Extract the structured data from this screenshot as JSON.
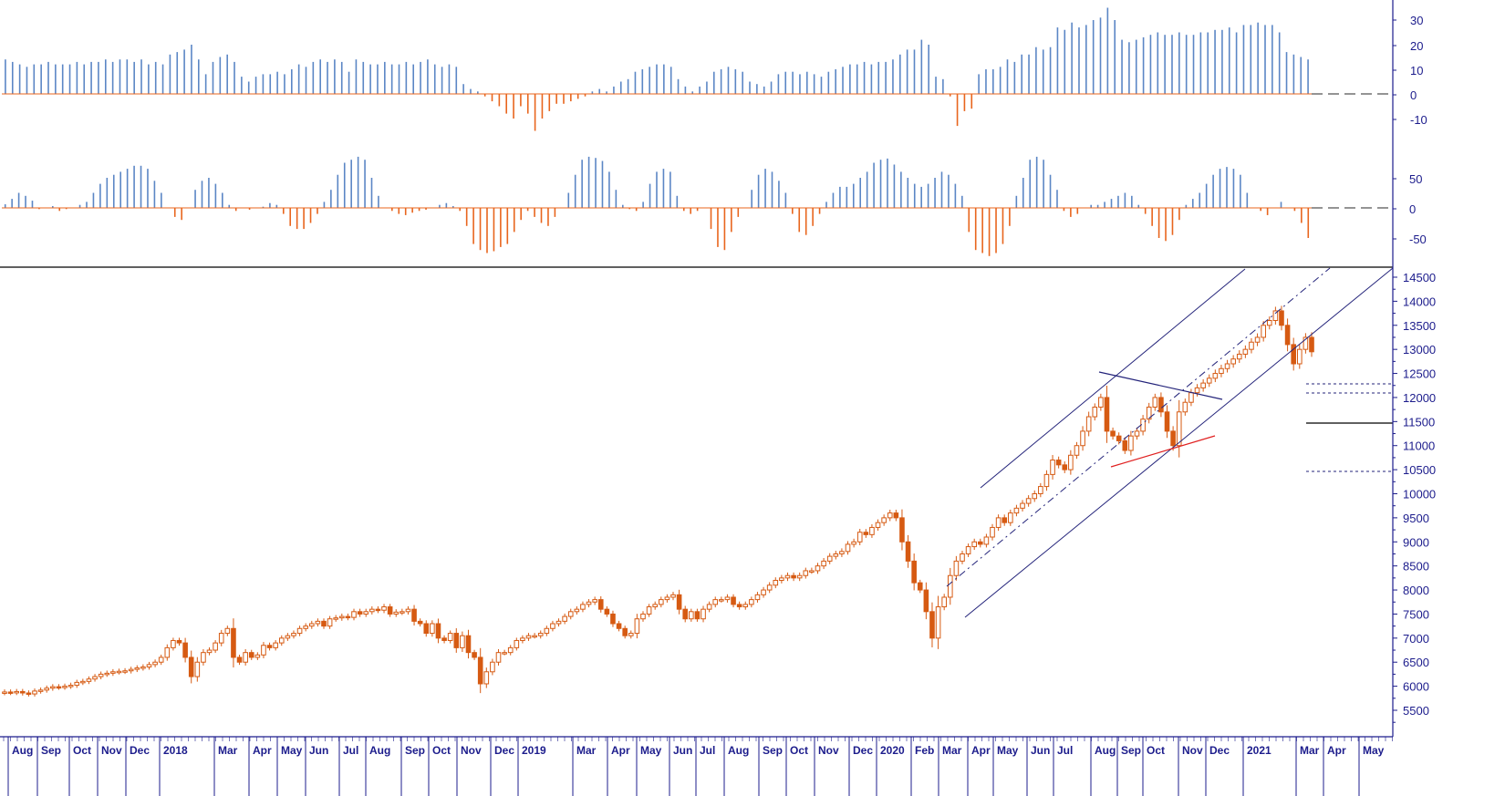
{
  "chart_data": [
    {
      "type": "bar",
      "panel": "oscillator-upper",
      "y_ticks": [
        "30",
        "20",
        "10",
        "0",
        "-10"
      ],
      "ylim": [
        -14,
        36
      ],
      "zero_line": "dashed",
      "colors": {
        "positive": "#5b86c5",
        "negative": "#e8651d"
      },
      "values": [
        14,
        13,
        12,
        11,
        12,
        12,
        13,
        12,
        12,
        12,
        13,
        12,
        13,
        13,
        14,
        13,
        14,
        14,
        13,
        14,
        12,
        13,
        12,
        16,
        17,
        18,
        20,
        14,
        8,
        13,
        15,
        16,
        13,
        7,
        5,
        7,
        8,
        8,
        9,
        8,
        10,
        12,
        11,
        13,
        14,
        13,
        14,
        13,
        9,
        14,
        13,
        12,
        12,
        13,
        12,
        12,
        13,
        12,
        13,
        14,
        12,
        11,
        12,
        11,
        4,
        2,
        1,
        -1,
        -3,
        -5,
        -8,
        -10,
        -5,
        -8,
        -15,
        -10,
        -7,
        -4,
        -4,
        -3,
        -2,
        -1,
        1,
        2,
        1,
        3,
        5,
        6,
        9,
        10,
        11,
        12,
        12,
        11,
        6,
        3,
        1,
        3,
        5,
        9,
        10,
        11,
        10,
        9,
        5,
        4,
        3,
        5,
        8,
        9,
        9,
        8,
        9,
        8,
        7,
        9,
        10,
        11,
        12,
        12,
        13,
        12,
        13,
        13,
        14,
        16,
        18,
        18,
        22,
        20,
        7,
        6,
        -1,
        -13,
        -7,
        -6,
        8,
        10,
        10,
        11,
        14,
        13,
        16,
        16,
        19,
        18,
        19,
        27,
        26,
        29,
        27,
        28,
        30,
        31,
        35,
        30,
        22,
        21,
        22,
        23,
        24,
        25,
        24,
        24,
        25,
        24,
        24,
        25,
        25,
        26,
        26,
        27,
        25,
        28,
        28,
        29,
        28,
        28,
        25,
        17,
        16,
        15,
        14
      ]
    },
    {
      "type": "bar",
      "panel": "oscillator-lower",
      "y_ticks": [
        "50",
        "0",
        "-50"
      ],
      "ylim": [
        -80,
        100
      ],
      "zero_line": "dashed",
      "colors": {
        "positive": "#5b86c5",
        "negative": "#e8651d"
      },
      "values": [
        6,
        15,
        25,
        20,
        12,
        -2,
        0,
        3,
        -5,
        -2,
        0,
        5,
        10,
        25,
        40,
        50,
        55,
        60,
        65,
        70,
        70,
        65,
        45,
        25,
        0,
        -15,
        -20,
        0,
        30,
        45,
        50,
        40,
        25,
        5,
        -5,
        0,
        -3,
        0,
        2,
        8,
        5,
        -10,
        -30,
        -35,
        -35,
        -25,
        -10,
        10,
        30,
        55,
        75,
        80,
        85,
        80,
        50,
        20,
        0,
        -5,
        -10,
        -12,
        -8,
        -5,
        -3,
        0,
        5,
        8,
        3,
        -5,
        -30,
        -60,
        -70,
        -75,
        -72,
        -65,
        -60,
        -40,
        -20,
        -5,
        -15,
        -25,
        -30,
        -15,
        0,
        25,
        55,
        80,
        85,
        83,
        78,
        60,
        30,
        5,
        -2,
        -5,
        10,
        40,
        60,
        65,
        60,
        20,
        -5,
        -10,
        -5,
        0,
        -35,
        -65,
        -70,
        -40,
        -15,
        0,
        30,
        55,
        65,
        60,
        45,
        25,
        -10,
        -40,
        -45,
        -30,
        -10,
        10,
        25,
        35,
        35,
        40,
        50,
        60,
        75,
        80,
        82,
        72,
        60,
        50,
        40,
        35,
        40,
        50,
        60,
        55,
        40,
        20,
        -40,
        -70,
        -75,
        -80,
        -75,
        -60,
        -30,
        20,
        50,
        80,
        85,
        80,
        55,
        30,
        -5,
        -15,
        -10,
        0,
        5,
        5,
        10,
        15,
        20,
        25,
        20,
        5,
        -10,
        -30,
        -50,
        -55,
        -45,
        -20,
        5,
        15,
        25,
        40,
        55,
        65,
        68,
        65,
        55,
        25,
        0,
        -5,
        -12,
        0,
        10,
        0,
        -5,
        -25,
        -50
      ]
    },
    {
      "type": "candlestick",
      "panel": "price",
      "interval": "weekly",
      "y_ticks": [
        "14500",
        "14000",
        "13500",
        "13000",
        "12500",
        "12000",
        "11500",
        "11000",
        "10500",
        "10000",
        "9500",
        "9000",
        "8500",
        "8000",
        "7500",
        "7000",
        "6500",
        "6000",
        "5500"
      ],
      "ylim": [
        5000,
        14600
      ],
      "x_labels": [
        "Aug",
        "Sep",
        "Oct",
        "Nov",
        "Dec",
        "2018",
        "Mar",
        "Apr",
        "May",
        "Jun",
        "Jul",
        "Aug",
        "Sep",
        "Oct",
        "Nov",
        "Dec",
        "2019",
        "Mar",
        "Apr",
        "May",
        "Jun",
        "Jul",
        "Aug",
        "Sep",
        "Oct",
        "Nov",
        "Dec",
        "2020",
        "Feb",
        "Mar",
        "Apr",
        "May",
        "Jun",
        "Jul",
        "Aug",
        "Sep",
        "Oct",
        "Nov",
        "Dec",
        "2021",
        "Mar",
        "Apr",
        "May"
      ],
      "closes": [
        5880,
        5870,
        5890,
        5860,
        5840,
        5900,
        5920,
        5960,
        5990,
        5980,
        6000,
        6020,
        6080,
        6100,
        6150,
        6200,
        6250,
        6270,
        6300,
        6310,
        6320,
        6350,
        6380,
        6400,
        6450,
        6500,
        6600,
        6800,
        6950,
        6900,
        6600,
        6200,
        6500,
        6700,
        6750,
        6900,
        7100,
        7200,
        6600,
        6500,
        6700,
        6600,
        6650,
        6850,
        6800,
        6900,
        7000,
        7050,
        7100,
        7200,
        7250,
        7300,
        7350,
        7250,
        7400,
        7420,
        7450,
        7430,
        7550,
        7500,
        7550,
        7600,
        7580,
        7650,
        7500,
        7540,
        7550,
        7600,
        7350,
        7300,
        7100,
        7300,
        7000,
        6950,
        7100,
        6800,
        7050,
        6700,
        6600,
        6050,
        6300,
        6500,
        6700,
        6700,
        6800,
        6950,
        7000,
        7050,
        7050,
        7100,
        7200,
        7300,
        7350,
        7450,
        7550,
        7600,
        7700,
        7750,
        7800,
        7600,
        7500,
        7300,
        7200,
        7050,
        7100,
        7400,
        7500,
        7650,
        7700,
        7800,
        7850,
        7900,
        7600,
        7400,
        7550,
        7400,
        7600,
        7700,
        7800,
        7800,
        7850,
        7700,
        7650,
        7700,
        7800,
        7900,
        8000,
        8100,
        8200,
        8250,
        8300,
        8250,
        8300,
        8400,
        8400,
        8500,
        8600,
        8700,
        8750,
        8800,
        8950,
        9000,
        9200,
        9150,
        9300,
        9400,
        9500,
        9600,
        9500,
        9000,
        8600,
        8150,
        8000,
        7550,
        7000,
        7650,
        7850,
        8300,
        8600,
        8750,
        8900,
        9000,
        8950,
        9100,
        9300,
        9500,
        9400,
        9600,
        9700,
        9800,
        9900,
        10000,
        10150,
        10400,
        10700,
        10600,
        10500,
        10800,
        11000,
        11300,
        11600,
        11800,
        12000,
        11300,
        11200,
        11100,
        10900,
        11200,
        11300,
        11550,
        11800,
        12000,
        11700,
        11300,
        11000,
        11700,
        11900,
        12100,
        12200,
        12300,
        12400,
        12500,
        12600,
        12700,
        12800,
        12900,
        13000,
        13150,
        13250,
        13500,
        13600,
        13800,
        13500,
        13100,
        12700,
        13000,
        13250,
        12950
      ]
    }
  ]
}
